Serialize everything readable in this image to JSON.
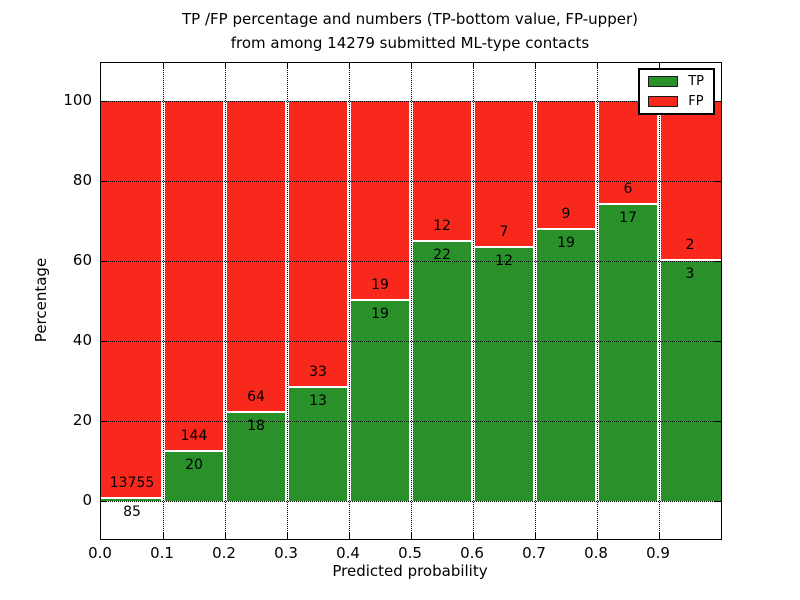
{
  "chart_data": {
    "type": "bar",
    "stacked": true,
    "normalized_to": 100,
    "title_line1": "TP /FP percentage and numbers (TP-bottom value, FP-upper)",
    "title_line2": "from among 14279 submitted ML-type contacts",
    "total_contacts": 14279,
    "xlabel": "Predicted probability",
    "ylabel": "Percentage",
    "x_tick_labels": [
      "0.0",
      "0.1",
      "0.2",
      "0.3",
      "0.4",
      "0.5",
      "0.6",
      "0.7",
      "0.8",
      "0.9"
    ],
    "y_tick_labels": [
      "0",
      "20",
      "40",
      "60",
      "80",
      "100"
    ],
    "y_tick_values": [
      0,
      20,
      40,
      60,
      80,
      100
    ],
    "xlim": [
      0.0,
      1.0
    ],
    "ylim": [
      -9.5,
      109.5
    ],
    "bin_width": 0.1,
    "bin_starts": [
      0.0,
      0.1,
      0.2,
      0.3,
      0.4,
      0.5,
      0.6,
      0.7,
      0.8,
      0.9
    ],
    "grid": true,
    "grid_style": "dotted",
    "legend_position": "upper right",
    "annotation_rule": "TP count printed at top of green segment, FP count printed at bottom of red segment",
    "series": [
      {
        "name": "TP",
        "color": "#2a902a",
        "values": [
          85,
          20,
          18,
          13,
          19,
          22,
          12,
          19,
          17,
          3
        ]
      },
      {
        "name": "FP",
        "color": "#f8281c",
        "values": [
          13755,
          144,
          64,
          33,
          19,
          12,
          7,
          9,
          6,
          2
        ]
      }
    ]
  },
  "colors": {
    "tp_green": "#2a902a",
    "fp_red": "#f8281c",
    "grid_line": "#000000",
    "background": "#ffffff",
    "text": "#000000"
  }
}
